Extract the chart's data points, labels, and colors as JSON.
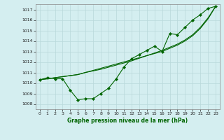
{
  "title": "Graphe pression niveau de la mer (hPa)",
  "background_color": "#d4eef0",
  "grid_color": "#b8d8da",
  "line_color": "#006400",
  "xlim": [
    -0.5,
    23.5
  ],
  "ylim": [
    1007.5,
    1017.5
  ],
  "yticks": [
    1008,
    1009,
    1010,
    1011,
    1012,
    1013,
    1014,
    1015,
    1016,
    1017
  ],
  "xticks": [
    0,
    1,
    2,
    3,
    4,
    5,
    6,
    7,
    8,
    9,
    10,
    11,
    12,
    13,
    14,
    15,
    16,
    17,
    18,
    19,
    20,
    21,
    22,
    23
  ],
  "hours": [
    0,
    1,
    2,
    3,
    4,
    5,
    6,
    7,
    8,
    9,
    10,
    11,
    12,
    13,
    14,
    15,
    16,
    17,
    18,
    19,
    20,
    21,
    22,
    23
  ],
  "main_line": [
    1010.3,
    1010.5,
    1010.4,
    1010.4,
    1009.3,
    1008.4,
    1008.5,
    1008.5,
    1009.0,
    1009.5,
    1010.4,
    1011.5,
    1012.3,
    1012.7,
    1013.1,
    1013.5,
    1013.0,
    1014.7,
    1014.6,
    1015.3,
    1016.0,
    1016.5,
    1017.1,
    1017.3
  ],
  "trend1": [
    1010.3,
    1010.4,
    1010.5,
    1010.6,
    1010.7,
    1010.8,
    1011.0,
    1011.2,
    1011.4,
    1011.6,
    1011.8,
    1012.0,
    1012.2,
    1012.4,
    1012.6,
    1012.8,
    1013.0,
    1013.3,
    1013.6,
    1014.0,
    1014.5,
    1015.2,
    1016.1,
    1017.3
  ],
  "trend2": [
    1010.3,
    1010.4,
    1010.5,
    1010.6,
    1010.7,
    1010.8,
    1011.0,
    1011.15,
    1011.3,
    1011.5,
    1011.7,
    1011.9,
    1012.1,
    1012.35,
    1012.6,
    1012.85,
    1013.1,
    1013.4,
    1013.7,
    1014.1,
    1014.6,
    1015.3,
    1016.2,
    1017.3
  ]
}
